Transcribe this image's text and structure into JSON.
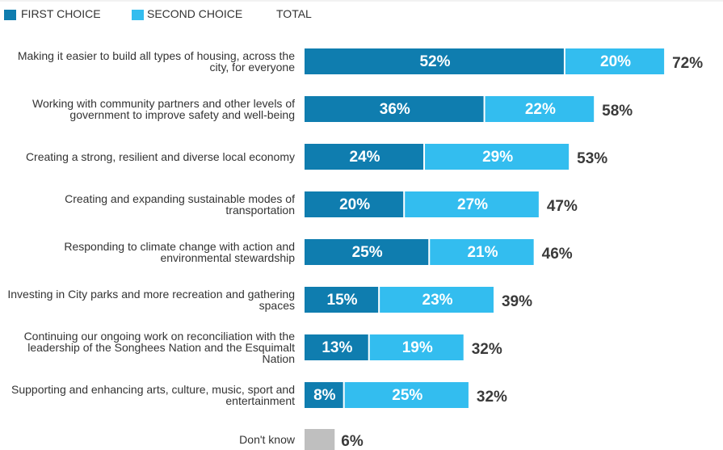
{
  "chart_data": {
    "type": "bar",
    "orientation": "horizontal",
    "stacked": true,
    "categories": [
      "Making it easier to build all types of housing, across the city, for everyone",
      "Working with community partners and other levels of government to improve safety and well-being",
      "Creating a strong, resilient and diverse local economy",
      "Creating and expanding sustainable modes of transportation",
      "Responding to climate change with action and environmental stewardship",
      "Investing in City parks and more recreation and gathering spaces",
      "Continuing our ongoing work on reconciliation with the leadership of the Songhees Nation and the Esquimalt Nation",
      "Supporting and enhancing arts, culture, music, sport and entertainment",
      "Don't know"
    ],
    "series": [
      {
        "name": "FIRST CHOICE",
        "color": "#0f7daf",
        "values": [
          52,
          36,
          24,
          20,
          25,
          15,
          13,
          8,
          null
        ],
        "value_labels": [
          "52%",
          "36%",
          "24%",
          "20%",
          "25%",
          "15%",
          "13%",
          "8%",
          null
        ]
      },
      {
        "name": "SECOND CHOICE",
        "color": "#33bdef",
        "values": [
          20,
          22,
          29,
          27,
          21,
          23,
          19,
          25,
          null
        ],
        "value_labels": [
          "20%",
          "22%",
          "29%",
          "27%",
          "21%",
          "23%",
          "19%",
          "25%",
          null
        ]
      },
      {
        "name": "TOTAL",
        "color": "#bfbfbf",
        "values": [
          72,
          58,
          53,
          47,
          46,
          39,
          32,
          32,
          6
        ],
        "value_labels": [
          "72%",
          "58%",
          "53%",
          "47%",
          "46%",
          "39%",
          "32%",
          "32%",
          "6%"
        ]
      }
    ]
  }
}
